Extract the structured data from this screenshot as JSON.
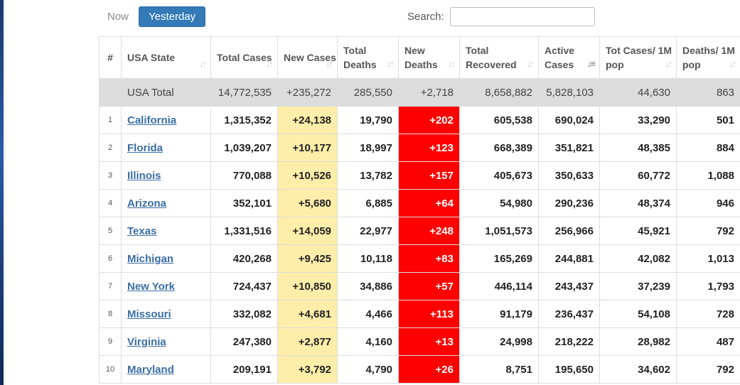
{
  "controls": {
    "now_label": "Now",
    "yesterday_label": "Yesterday",
    "search_label": "Search:",
    "search_value": ""
  },
  "table": {
    "headers": [
      {
        "label": "#"
      },
      {
        "label": "USA State"
      },
      {
        "label": "Total Cases"
      },
      {
        "label": "New Cases"
      },
      {
        "label": "Total Deaths"
      },
      {
        "label": "New Deaths"
      },
      {
        "label": "Total Recovered"
      },
      {
        "label": "Active Cases"
      },
      {
        "label": "Tot Cases/ 1M pop"
      },
      {
        "label": "Deaths/ 1M pop"
      }
    ],
    "total_row": {
      "name": "USA Total",
      "total_cases": "14,772,535",
      "new_cases": "+235,272",
      "total_deaths": "285,550",
      "new_deaths": "+2,718",
      "total_recovered": "8,658,882",
      "active_cases": "5,828,103",
      "cases_per_m": "44,630",
      "deaths_per_m": "863"
    },
    "rows": [
      {
        "idx": "1",
        "name": "California",
        "total_cases": "1,315,352",
        "new_cases": "+24,138",
        "total_deaths": "19,790",
        "new_deaths": "+202",
        "total_recovered": "605,538",
        "active_cases": "690,024",
        "cases_per_m": "33,290",
        "deaths_per_m": "501"
      },
      {
        "idx": "2",
        "name": "Florida",
        "total_cases": "1,039,207",
        "new_cases": "+10,177",
        "total_deaths": "18,997",
        "new_deaths": "+123",
        "total_recovered": "668,389",
        "active_cases": "351,821",
        "cases_per_m": "48,385",
        "deaths_per_m": "884"
      },
      {
        "idx": "3",
        "name": "Illinois",
        "total_cases": "770,088",
        "new_cases": "+10,526",
        "total_deaths": "13,782",
        "new_deaths": "+157",
        "total_recovered": "405,673",
        "active_cases": "350,633",
        "cases_per_m": "60,772",
        "deaths_per_m": "1,088"
      },
      {
        "idx": "4",
        "name": "Arizona",
        "total_cases": "352,101",
        "new_cases": "+5,680",
        "total_deaths": "6,885",
        "new_deaths": "+64",
        "total_recovered": "54,980",
        "active_cases": "290,236",
        "cases_per_m": "48,374",
        "deaths_per_m": "946"
      },
      {
        "idx": "5",
        "name": "Texas",
        "total_cases": "1,331,516",
        "new_cases": "+14,059",
        "total_deaths": "22,977",
        "new_deaths": "+248",
        "total_recovered": "1,051,573",
        "active_cases": "256,966",
        "cases_per_m": "45,921",
        "deaths_per_m": "792"
      },
      {
        "idx": "6",
        "name": "Michigan",
        "total_cases": "420,268",
        "new_cases": "+9,425",
        "total_deaths": "10,118",
        "new_deaths": "+83",
        "total_recovered": "165,269",
        "active_cases": "244,881",
        "cases_per_m": "42,082",
        "deaths_per_m": "1,013"
      },
      {
        "idx": "7",
        "name": "New York",
        "total_cases": "724,437",
        "new_cases": "+10,850",
        "total_deaths": "34,886",
        "new_deaths": "+57",
        "total_recovered": "446,114",
        "active_cases": "243,437",
        "cases_per_m": "37,239",
        "deaths_per_m": "1,793"
      },
      {
        "idx": "8",
        "name": "Missouri",
        "total_cases": "332,082",
        "new_cases": "+4,681",
        "total_deaths": "4,466",
        "new_deaths": "+113",
        "total_recovered": "91,179",
        "active_cases": "236,437",
        "cases_per_m": "54,108",
        "deaths_per_m": "728"
      },
      {
        "idx": "9",
        "name": "Virginia",
        "total_cases": "247,380",
        "new_cases": "+2,877",
        "total_deaths": "4,160",
        "new_deaths": "+13",
        "total_recovered": "24,998",
        "active_cases": "218,222",
        "cases_per_m": "28,982",
        "deaths_per_m": "487"
      },
      {
        "idx": "10",
        "name": "Maryland",
        "total_cases": "209,191",
        "new_cases": "+3,792",
        "total_deaths": "4,790",
        "new_deaths": "+26",
        "total_recovered": "8,751",
        "active_cases": "195,650",
        "cases_per_m": "34,602",
        "deaths_per_m": "792"
      }
    ],
    "sorted_column": "Active Cases",
    "colors": {
      "new_cases_bg": "#ffeeaa",
      "new_deaths_bg": "#ff0000",
      "total_row_bg": "#dcdcdc",
      "link": "#3a6ea5",
      "active_button": "#337ab7"
    }
  }
}
